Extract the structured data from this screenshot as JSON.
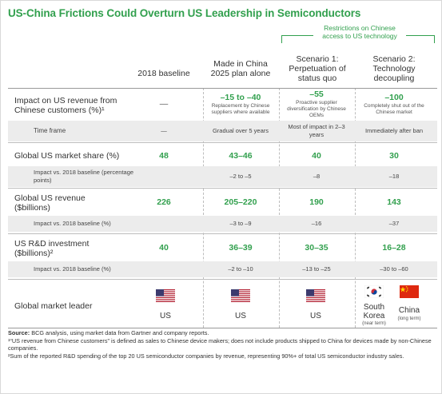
{
  "title": "US-China Frictions Could Overturn US Leadership in Semiconductors",
  "bracket_note": "Restrictions on Chinese access to US technology",
  "columns": {
    "baseline": "2018 baseline",
    "made_in_china": "Made in China 2025 plan alone",
    "scenario1": "Scenario 1: Perpetuation of status quo",
    "scenario2": "Scenario 2: Technology decoupling"
  },
  "rows": {
    "impact": {
      "label": "Impact on US revenue from Chinese customers (%)¹",
      "baseline": "—",
      "made_in_china": "–15 to –40",
      "made_in_china_note": "Replacement by Chinese suppliers where available",
      "scenario1": "–55",
      "scenario1_note": "Proactive supplier diversification by Chinese OEMs",
      "scenario2": "–100",
      "scenario2_note": "Completely shut out of the Chinese market"
    },
    "timeframe": {
      "label": "Time frame",
      "baseline": "—",
      "made_in_china": "Gradual over 5 years",
      "scenario1": "Most of impact in 2–3 years",
      "scenario2": "Immediately after ban"
    },
    "share": {
      "label": "Global US market share (%)",
      "baseline": "48",
      "made_in_china": "43–46",
      "scenario1": "40",
      "scenario2": "30",
      "sub_label": "Impact vs. 2018 baseline (percentage points)",
      "sub_made_in_china": "–2 to –5",
      "sub_scenario1": "–8",
      "sub_scenario2": "–18"
    },
    "revenue": {
      "label": "Global US revenue ($billions)",
      "baseline": "226",
      "made_in_china": "205–220",
      "scenario1": "190",
      "scenario2": "143",
      "sub_label": "Impact vs. 2018 baseline (%)",
      "sub_made_in_china": "–3 to –9",
      "sub_scenario1": "–16",
      "sub_scenario2": "–37"
    },
    "rnd": {
      "label": "US R&D investment ($billions)²",
      "baseline": "40",
      "made_in_china": "36–39",
      "scenario1": "30–35",
      "scenario2": "16–28",
      "sub_label": "Impact vs. 2018 baseline (%)",
      "sub_made_in_china": "–2 to –10",
      "sub_scenario1": "–13 to –25",
      "sub_scenario2": "–30 to –60"
    },
    "leader": {
      "label": "Global market leader",
      "baseline": "US",
      "made_in_china": "US",
      "scenario1": "US",
      "scenario2_a": "South Korea",
      "scenario2_a_tag": "(near term)",
      "scenario2_b": "China",
      "scenario2_b_tag": "(long term)"
    }
  },
  "footer": {
    "source_label": "Source:",
    "source_text": "BCG analysis, using market data from Gartner and company reports.",
    "note1": "¹“US revenue from Chinese customers” is defined as sales to Chinese device makers; does not include products shipped to China for devices made by non-Chinese companies.",
    "note2": "²Sum of the reported R&D spending of the top 20 US semiconductor companies by revenue, representing 90%+ of total US semiconductor industry sales."
  },
  "colors": {
    "accent": "#32a04e",
    "shade": "#ececec",
    "us_red": "#b22234",
    "us_blue": "#3c3b6e",
    "china_red": "#de2910",
    "china_yellow": "#ffde00"
  },
  "icons": [
    "us-flag-icon",
    "south-korea-flag-icon",
    "china-flag-icon"
  ]
}
